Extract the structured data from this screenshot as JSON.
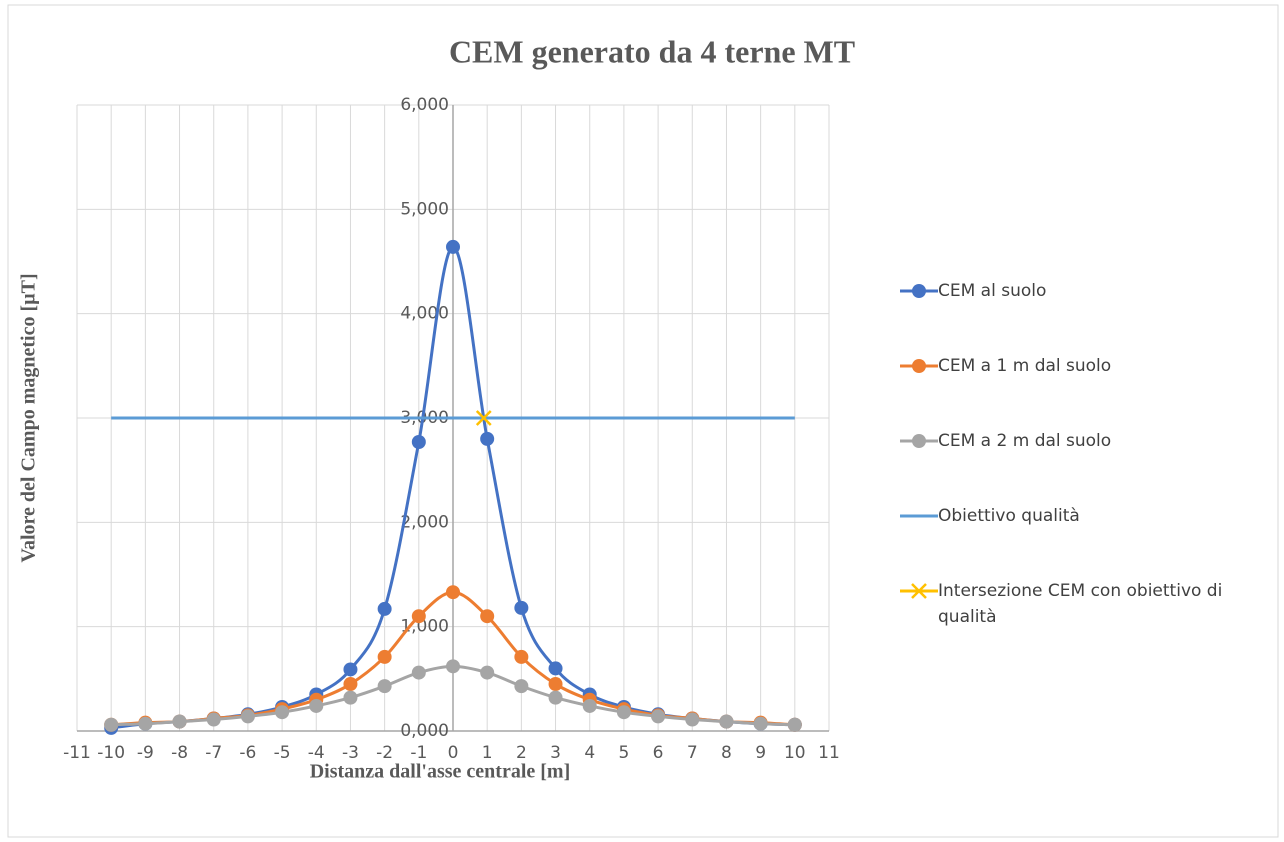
{
  "chart_data": {
    "type": "line",
    "title": "CEM generato da 4 terne MT",
    "x_label": "Distanza dall'asse centrale [m]",
    "y_label": "Valore del Campo magnetico [µT]",
    "xlim": [
      -11,
      11
    ],
    "xticks": [
      -11,
      -10,
      -9,
      -8,
      -7,
      -6,
      -5,
      -4,
      -3,
      -2,
      -1,
      0,
      1,
      2,
      3,
      4,
      5,
      6,
      7,
      8,
      9,
      10,
      11
    ],
    "ylim": [
      0,
      6
    ],
    "yticks": [
      {
        "value": 0,
        "label": "0,000"
      },
      {
        "value": 1,
        "label": "1,000"
      },
      {
        "value": 2,
        "label": "2,000"
      },
      {
        "value": 3,
        "label": "3,000"
      },
      {
        "value": 4,
        "label": "4,000"
      },
      {
        "value": 5,
        "label": "5,000"
      },
      {
        "value": 6,
        "label": "6,000"
      }
    ],
    "grid": true,
    "legend": "right",
    "series": [
      {
        "name": "CEM al suolo",
        "color": "#4472c4",
        "marker": "circle",
        "x": [
          -10,
          -9,
          -8,
          -7,
          -6,
          -5,
          -4,
          -3,
          -2,
          -1,
          0,
          1,
          2,
          3,
          4,
          5,
          6,
          7,
          8,
          9,
          10
        ],
        "values": [
          0.03,
          0.07,
          0.09,
          0.12,
          0.16,
          0.23,
          0.35,
          0.59,
          1.17,
          2.77,
          4.64,
          2.8,
          1.18,
          0.6,
          0.35,
          0.23,
          0.16,
          0.12,
          0.09,
          0.07,
          0.06
        ]
      },
      {
        "name": "CEM a 1 m dal suolo",
        "color": "#ed7d31",
        "marker": "circle",
        "x": [
          -10,
          -9,
          -8,
          -7,
          -6,
          -5,
          -4,
          -3,
          -2,
          -1,
          0,
          1,
          2,
          3,
          4,
          5,
          6,
          7,
          8,
          9,
          10
        ],
        "values": [
          0.06,
          0.08,
          0.09,
          0.12,
          0.15,
          0.21,
          0.3,
          0.45,
          0.71,
          1.1,
          1.33,
          1.1,
          0.71,
          0.45,
          0.3,
          0.21,
          0.15,
          0.12,
          0.09,
          0.08,
          0.06
        ]
      },
      {
        "name": "CEM a 2 m dal suolo",
        "color": "#a5a5a5",
        "marker": "circle",
        "x": [
          -10,
          -9,
          -8,
          -7,
          -6,
          -5,
          -4,
          -3,
          -2,
          -1,
          0,
          1,
          2,
          3,
          4,
          5,
          6,
          7,
          8,
          9,
          10
        ],
        "values": [
          0.06,
          0.07,
          0.09,
          0.11,
          0.14,
          0.18,
          0.24,
          0.32,
          0.43,
          0.56,
          0.62,
          0.56,
          0.43,
          0.32,
          0.24,
          0.18,
          0.14,
          0.11,
          0.09,
          0.07,
          0.06
        ]
      },
      {
        "name": "Obiettivo qualità",
        "color": "#5b9bd5",
        "marker": "none",
        "x": [
          -10,
          10
        ],
        "values": [
          3,
          3
        ]
      },
      {
        "name": "Intersezione CEM con obiettivo di qualità",
        "color": "#ffc000",
        "marker": "x",
        "x": [
          0.9
        ],
        "values": [
          3
        ]
      }
    ]
  }
}
